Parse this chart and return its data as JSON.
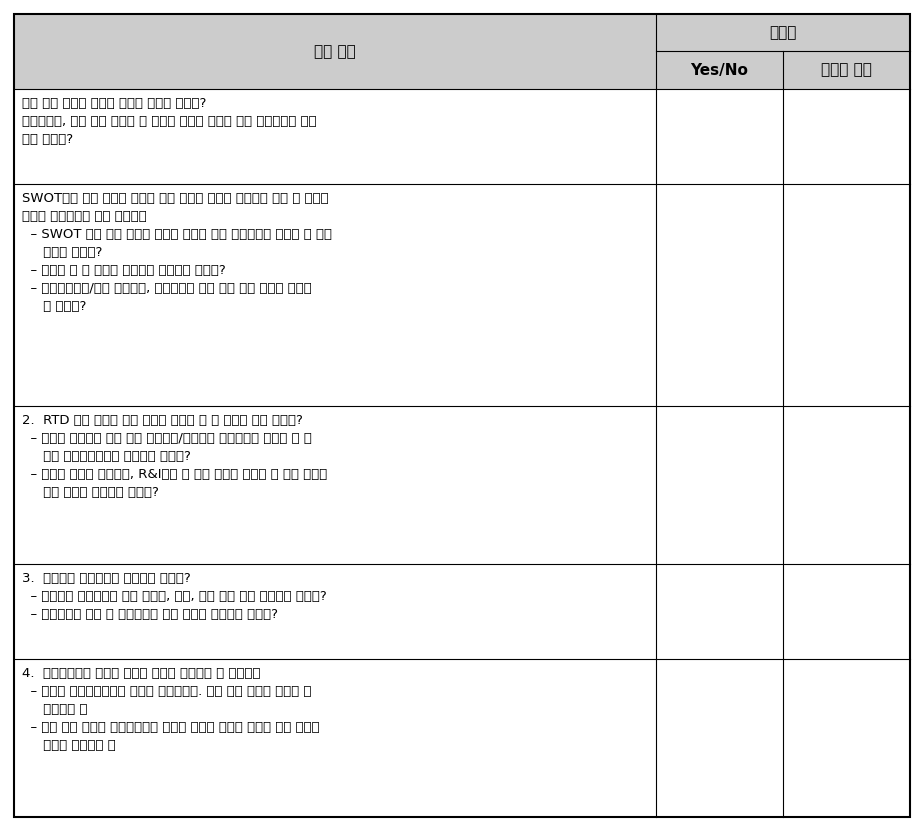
{
  "header_col1": "성취 단계",
  "header_col23_top": "성취도",
  "header_col2": "Yes/No",
  "header_col3": "미성취 요소",
  "rows": [
    {
      "lines": [
        "국가 또는 지역의 스마트 전문화 전략이 있는가?",
        "프레임워크, 지표 등을 설정할 때 참고한 자료에 적절한 운영 프로그램이 포함",
        "되어 있는가?"
      ]
    },
    {
      "lines": [
        "SWOT분석 또는 유사한 분석을 통해 연구와 혁신의 우선순위 조정 및 한정된",
        "자원을 투자하도록 설계 되었는가",
        "  – SWOT 분석 또는 유사한 분석은 투자에 대한 우선순위를 설정할 수 있는",
        "     근거가 있는가?",
        "  – 분석을 할 수 있도록 방법론이 포함되어 있는가?",
        "  – 우선순위도출/배제 프로세스, 이해관계자 참여 등에 대한 내용이 포함되",
        "     어 있는가?"
      ]
    },
    {
      "lines": [
        "2.  RTD 투자 촉진을 위한 개괄적 측정을 할 수 있도록 되어 있는가?",
        "  – 스마트 전문화의 시행 또는 프로그램/연구소가 자금유치에 활용할 수 있",
        "     도록 정책혼합계획이 포함되어 있는가?",
        "  – 개괄적 측정을 중소기업, R&I기업 등 특정 기업에 적용할 수 있는 방안에",
        "     대한 설명이 포함되어 있는가?"
      ]
    },
    {
      "lines": [
        "3.  모니터링 메카니즘을 포함하고 있는가?",
        "  – 모니터링 메카니즘에 대한 방법론, 지표, 관리 체계 등이 포함되어 있는가?",
        "  – 모니터링이 끝난 후 후속조치에 대한 내용이 포함되어 있는가?"
      ]
    },
    {
      "lines": [
        "4.  프레임워크의 개요는 연구와 혁신의 예산배분 시 적용가능",
        "  – 적절한 운영프로그램은 참고한 프레임워크. 지표 등이 포함된 출처가 포",
        "     함되어야 함",
        "  – 국가 또는 지역의 프레임워크의 개요는 다양한 재정적 자원이 있는 연구와",
        "     혁신에 적용가능 함"
      ]
    }
  ],
  "col_ratios": [
    0.716,
    0.142,
    0.142
  ],
  "header_bg": "#cccccc",
  "cell_bg": "#ffffff",
  "border_color": "#000000",
  "header_fontsize": 11,
  "cell_fontsize": 9.5,
  "fig_width": 9.24,
  "fig_height": 8.31,
  "dpi": 100
}
